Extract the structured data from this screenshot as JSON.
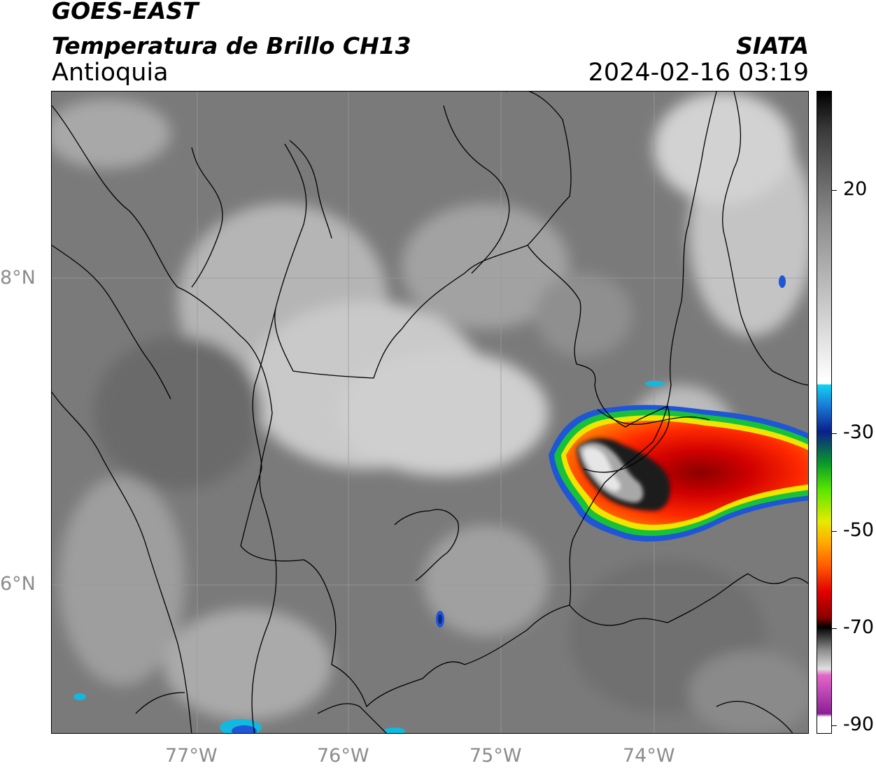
{
  "header": {
    "satellite": "GOES-EAST",
    "product": "Temperatura de Brillo CH13",
    "region": "Antioquia",
    "agency": "SIATA",
    "datetime": "2024-02-16 03:19"
  },
  "map": {
    "longitude_labels": [
      "77°W",
      "76°W",
      "75°W",
      "74°W"
    ],
    "latitude_labels": [
      "8°N",
      "6°N"
    ],
    "colors": {
      "background_gray": "#7a7a7a",
      "cloud_light": "#d9d9d9",
      "storm_red": "#e00000",
      "storm_orange": "#ff7a00",
      "storm_green": "#1fc51f",
      "storm_blue": "#1f56d6",
      "core_black": "#111111",
      "core_gray": "#9a9a9a"
    }
  },
  "colorbar": {
    "ticks": [
      "20",
      "-30",
      "-50",
      "-70",
      "-90"
    ],
    "gradient_colors": [
      "#000000",
      "#404040",
      "#9e9e9e",
      "#ffffff",
      "#12d2f2",
      "#0b1f8a",
      "#0a9a2a",
      "#57e600",
      "#e6ea00",
      "#ff9a00",
      "#ff2a00",
      "#a00000",
      "#000000",
      "#c9c9c9",
      "#e466c9",
      "#8a1f96",
      "#ffffff"
    ]
  }
}
